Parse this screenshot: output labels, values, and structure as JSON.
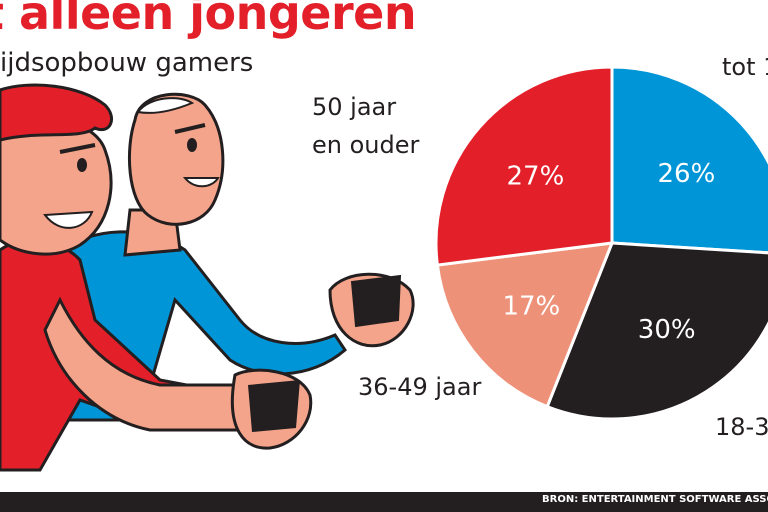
{
  "header": {
    "title": "t alleen jongeren",
    "subtitle": "ijdsopbouw gamers"
  },
  "source": "BRON: ENTERTAINMENT SOFTWARE ASSOC",
  "colors": {
    "red": "#e3202a",
    "blue": "#0095d6",
    "black": "#231f20",
    "salmon": "#ee9179",
    "skin": "#f4a48a"
  },
  "illustration": {
    "icons": [
      "red-haired-gamer-icon",
      "bald-gamer-icon",
      "game-controller-icon"
    ]
  },
  "chart_data": {
    "type": "pie",
    "slices": [
      {
        "label": "tot 1",
        "value": 26,
        "text": "26%",
        "color": "#0095d6",
        "label_color": "#ffffff"
      },
      {
        "label": "18-3",
        "value": 30,
        "text": "30%",
        "color": "#231f20",
        "label_color": "#ffffff"
      },
      {
        "label": "36-49 jaar",
        "value": 17,
        "text": "17%",
        "color": "#ee9179",
        "label_color": "#ffffff"
      },
      {
        "label_lines": [
          "50 jaar",
          "en ouder"
        ],
        "value": 27,
        "text": "27%",
        "color": "#e3202a",
        "label_color": "#ffffff"
      }
    ]
  }
}
